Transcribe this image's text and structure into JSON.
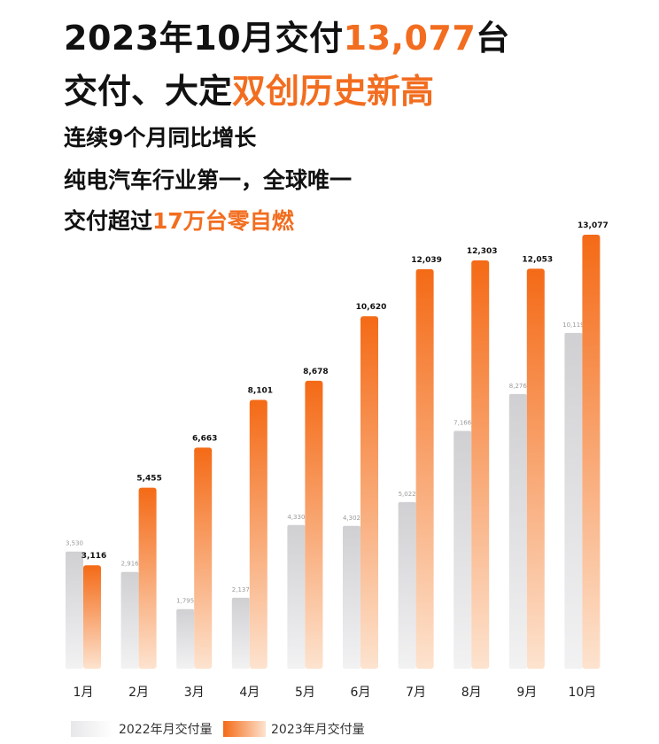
{
  "headline": {
    "line1_prefix": "2023年10月交付",
    "line1_highlight": "13,077",
    "line1_suffix": "台",
    "line2_prefix": "交付、大定",
    "line2_highlight": "双创历史新高"
  },
  "subheads": {
    "line1": "连续9个月同比增长",
    "line2": "纯电汽车行业第一，全球唯一",
    "line3_prefix": "交付超过",
    "line3_highlight": "17万台零自燃"
  },
  "colors": {
    "accent": "#f26d1f",
    "bar_2023_top": "#f46a16",
    "bar_2023_bottom": "#fde3cf",
    "bar_2022_top": "#d0d0d3",
    "bar_2022_bottom": "#f2f2f3"
  },
  "chart_data": {
    "type": "bar",
    "categories": [
      "1月",
      "2月",
      "3月",
      "4月",
      "5月",
      "6月",
      "7月",
      "8月",
      "9月",
      "10月"
    ],
    "series": [
      {
        "name": "2022年月交付量",
        "values": [
          3530,
          2916,
          1795,
          2137,
          4330,
          4302,
          5022,
          7166,
          8276,
          10119
        ],
        "labels": [
          "3,530",
          "2,916",
          "1,795",
          "2,137",
          "4,330",
          "4,302",
          "5,022",
          "7,166",
          "8,276",
          "10,119"
        ]
      },
      {
        "name": "2023年月交付量",
        "values": [
          3116,
          5455,
          6663,
          8101,
          8678,
          10620,
          12039,
          12303,
          12053,
          13077
        ],
        "labels": [
          "3,116",
          "5,455",
          "6,663",
          "8,101",
          "8,678",
          "10,620",
          "12,039",
          "12,303",
          "12,053",
          "13,077"
        ]
      }
    ],
    "legend_position": "bottom-left"
  }
}
